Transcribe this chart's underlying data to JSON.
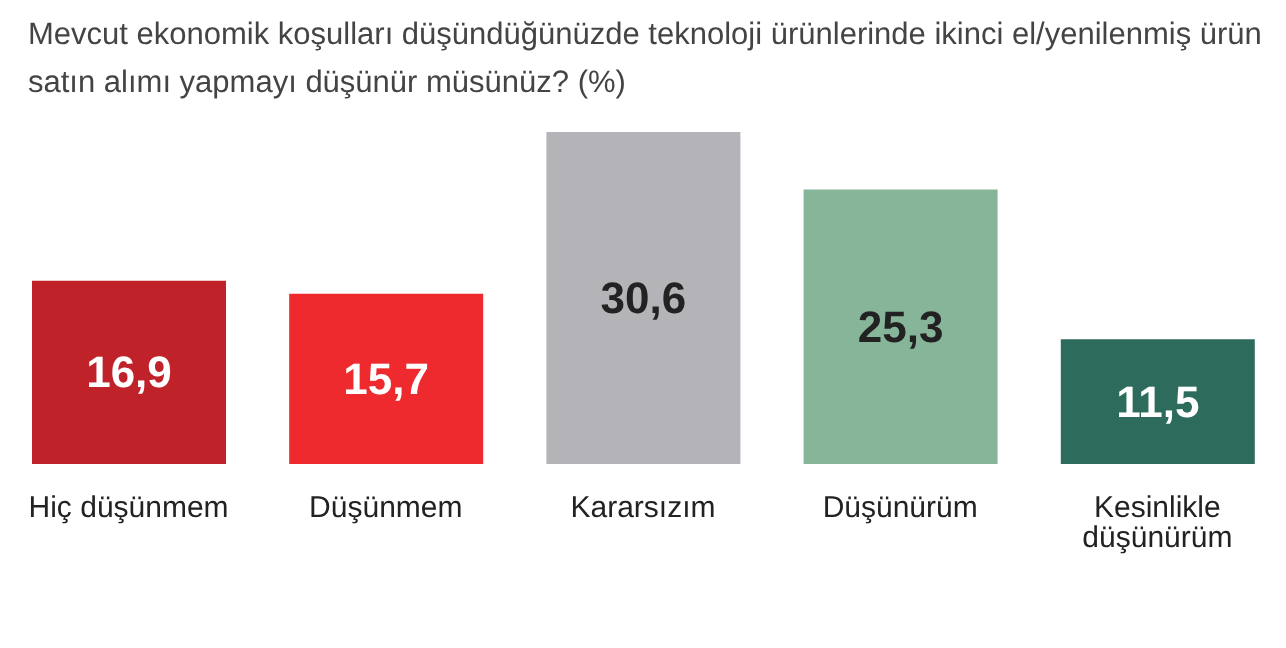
{
  "chart_data": {
    "type": "bar",
    "title": "Mevcut ekonomik koşulları düşündüğünüzde teknoloji ürünlerinde ikinci el/yenilenmiş ürün satın alımı yapmayı düşünür müsünüz? (%)",
    "categories": [
      "Hiç düşünmem",
      "Düşünmem",
      "Kararsızım",
      "Düşünürüm",
      "Kesinlikle düşünürüm"
    ],
    "values": [
      16.9,
      15.7,
      30.6,
      25.3,
      11.5
    ],
    "colors": [
      "#c0222a",
      "#ee2a2e",
      "#b4b4b8",
      "#86b59a",
      "#2d6b5c"
    ],
    "value_labels": [
      "16,9",
      "15,7",
      "30,6",
      "25,3",
      "11,5"
    ]
  }
}
